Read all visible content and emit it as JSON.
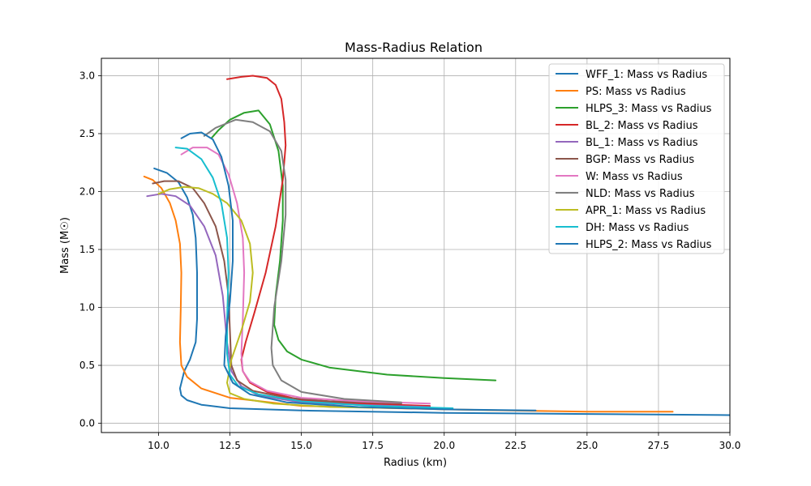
{
  "chart_data": {
    "type": "line",
    "title": "Mass-Radius Relation",
    "xlabel": "Radius (km)",
    "ylabel": "Mass (M☉)",
    "xlim": [
      8.0,
      30.0
    ],
    "ylim": [
      -0.08,
      3.15
    ],
    "xticks": [
      10.0,
      12.5,
      15.0,
      17.5,
      20.0,
      22.5,
      25.0,
      27.5,
      30.0
    ],
    "xtick_labels": [
      "10.0",
      "12.5",
      "15.0",
      "17.5",
      "20.0",
      "22.5",
      "25.0",
      "27.5",
      "30.0"
    ],
    "yticks": [
      0.0,
      0.5,
      1.0,
      1.5,
      2.0,
      2.5,
      3.0
    ],
    "ytick_labels": [
      "0.0",
      "0.5",
      "1.0",
      "1.5",
      "2.0",
      "2.5",
      "3.0"
    ],
    "grid": true,
    "legend_position": "top-right",
    "series": [
      {
        "name": "WFF_1: Mass vs Radius",
        "color": "#1f77b4",
        "x": [
          30.0,
          25.0,
          20.0,
          15.0,
          12.5,
          11.5,
          11.0,
          10.8,
          10.75,
          10.9,
          11.1,
          11.3,
          11.35,
          11.35,
          11.3,
          11.2,
          11.0,
          10.7,
          10.3,
          9.85
        ],
        "y": [
          0.07,
          0.08,
          0.09,
          0.11,
          0.13,
          0.16,
          0.2,
          0.24,
          0.3,
          0.45,
          0.55,
          0.7,
          0.9,
          1.3,
          1.6,
          1.8,
          1.95,
          2.08,
          2.16,
          2.2
        ]
      },
      {
        "name": "PS: Mass vs Radius",
        "color": "#ff7f0e",
        "x": [
          28.0,
          25.0,
          20.0,
          15.0,
          12.5,
          11.5,
          11.0,
          10.8,
          10.75,
          10.78,
          10.8,
          10.75,
          10.6,
          10.4,
          10.1,
          9.8,
          9.5
        ],
        "y": [
          0.1,
          0.1,
          0.12,
          0.15,
          0.22,
          0.3,
          0.4,
          0.5,
          0.7,
          1.0,
          1.3,
          1.55,
          1.75,
          1.9,
          2.03,
          2.1,
          2.13
        ]
      },
      {
        "name": "HLPS_3: Mass vs Radius",
        "color": "#2ca02c",
        "x": [
          21.8,
          20.0,
          18.0,
          16.0,
          15.0,
          14.5,
          14.2,
          14.05,
          14.1,
          14.25,
          14.35,
          14.35,
          14.2,
          13.9,
          13.5,
          13.0,
          12.5,
          12.1,
          11.85
        ],
        "y": [
          0.37,
          0.39,
          0.42,
          0.48,
          0.55,
          0.62,
          0.72,
          0.85,
          1.1,
          1.4,
          1.75,
          2.05,
          2.35,
          2.58,
          2.7,
          2.68,
          2.62,
          2.53,
          2.46
        ]
      },
      {
        "name": "BL_2: Mass vs Radius",
        "color": "#d62728",
        "x": [
          19.5,
          17.0,
          15.0,
          13.8,
          13.2,
          12.95,
          12.9,
          13.05,
          13.35,
          13.75,
          14.1,
          14.35,
          14.45,
          14.4,
          14.3,
          14.1,
          13.8,
          13.3,
          12.9,
          12.4
        ],
        "y": [
          0.15,
          0.17,
          0.2,
          0.27,
          0.35,
          0.45,
          0.55,
          0.7,
          0.95,
          1.3,
          1.7,
          2.1,
          2.4,
          2.6,
          2.8,
          2.92,
          2.98,
          3.0,
          2.99,
          2.97
        ]
      },
      {
        "name": "BL_1: Mass vs Radius",
        "color": "#9467bd",
        "x": [
          19.5,
          17.0,
          15.0,
          13.5,
          12.9,
          12.55,
          12.4,
          12.25,
          12.0,
          11.6,
          11.1,
          10.6,
          10.1,
          9.6
        ],
        "y": [
          0.14,
          0.16,
          0.18,
          0.24,
          0.32,
          0.45,
          0.7,
          1.1,
          1.45,
          1.7,
          1.88,
          1.96,
          1.98,
          1.96
        ]
      },
      {
        "name": "BGP: Mass vs Radius",
        "color": "#8c564b",
        "x": [
          18.5,
          16.0,
          14.5,
          13.3,
          12.75,
          12.55,
          12.5,
          12.45,
          12.3,
          12.0,
          11.6,
          11.2,
          10.7,
          10.2,
          9.8
        ],
        "y": [
          0.17,
          0.19,
          0.22,
          0.28,
          0.37,
          0.5,
          0.8,
          1.1,
          1.4,
          1.7,
          1.9,
          2.03,
          2.09,
          2.09,
          2.07
        ]
      },
      {
        "name": "W: Mass vs Radius",
        "color": "#e377c2",
        "x": [
          19.5,
          17.0,
          15.0,
          13.8,
          13.2,
          12.95,
          12.9,
          12.95,
          13.0,
          12.95,
          12.75,
          12.45,
          12.1,
          11.7,
          11.2,
          10.8
        ],
        "y": [
          0.17,
          0.19,
          0.22,
          0.28,
          0.36,
          0.45,
          0.6,
          0.9,
          1.3,
          1.6,
          1.9,
          2.15,
          2.32,
          2.38,
          2.38,
          2.32
        ]
      },
      {
        "name": "NLD: Mass vs Radius",
        "color": "#7f7f7f",
        "x": [
          18.5,
          16.5,
          15.0,
          14.3,
          14.0,
          13.95,
          14.05,
          14.3,
          14.45,
          14.45,
          14.3,
          13.9,
          13.3,
          12.7,
          12.0,
          11.6
        ],
        "y": [
          0.18,
          0.21,
          0.27,
          0.37,
          0.5,
          0.65,
          1.0,
          1.4,
          1.8,
          2.1,
          2.35,
          2.52,
          2.6,
          2.62,
          2.55,
          2.48
        ]
      },
      {
        "name": "APR_1: Mass vs Radius",
        "color": "#bcbd22",
        "x": [
          18.5,
          16.0,
          14.0,
          13.0,
          12.5,
          12.4,
          12.55,
          12.9,
          13.2,
          13.3,
          13.2,
          12.9,
          12.4,
          11.9,
          11.4,
          10.9,
          10.4,
          10.0
        ],
        "y": [
          0.13,
          0.14,
          0.17,
          0.21,
          0.26,
          0.35,
          0.55,
          0.8,
          1.05,
          1.3,
          1.55,
          1.75,
          1.9,
          1.98,
          2.03,
          2.04,
          2.02,
          1.98
        ]
      },
      {
        "name": "DH: Mass vs Radius",
        "color": "#17becf",
        "x": [
          20.3,
          17.5,
          15.0,
          13.5,
          12.8,
          12.5,
          12.4,
          12.4,
          12.45,
          12.4,
          12.2,
          11.9,
          11.5,
          11.0,
          10.6
        ],
        "y": [
          0.13,
          0.15,
          0.19,
          0.25,
          0.32,
          0.42,
          0.6,
          0.9,
          1.3,
          1.6,
          1.9,
          2.12,
          2.28,
          2.37,
          2.38
        ]
      },
      {
        "name": "HLPS_2: Mass vs Radius",
        "color": "#1f77b4",
        "x": [
          23.2,
          20.0,
          17.0,
          14.5,
          13.2,
          12.6,
          12.3,
          12.35,
          12.5,
          12.6,
          12.6,
          12.45,
          12.2,
          11.9,
          11.5,
          11.1,
          10.8
        ],
        "y": [
          0.11,
          0.12,
          0.14,
          0.18,
          0.25,
          0.35,
          0.5,
          0.75,
          1.05,
          1.4,
          1.75,
          2.05,
          2.3,
          2.45,
          2.51,
          2.5,
          2.46
        ]
      }
    ]
  }
}
